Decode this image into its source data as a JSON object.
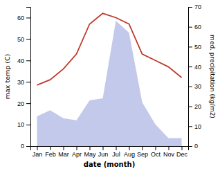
{
  "chart_data": {
    "type": "line",
    "categories": [
      "Jan",
      "Feb",
      "Mar",
      "Apr",
      "May",
      "Jun",
      "Jul",
      "Aug",
      "Sep",
      "Oct",
      "Nov",
      "Dec"
    ],
    "series": [
      {
        "type": "area",
        "axis": "y2",
        "color": "#b8c0e8",
        "values": [
          15,
          18,
          14,
          13,
          23,
          24,
          63,
          57,
          22,
          11,
          4,
          4
        ]
      },
      {
        "type": "line",
        "color": "#c0392b",
        "values": [
          28.5,
          31,
          36,
          43,
          57,
          62,
          60,
          57,
          43,
          40,
          37,
          32
        ]
      }
    ],
    "xlabel": "date (month)",
    "ylabel": "max temp (C)",
    "y2label": "med. precipitation (kg/m2)",
    "ylim": [
      0,
      65
    ],
    "yticks": [
      0,
      10,
      20,
      30,
      40,
      50,
      60
    ],
    "y2lim": [
      0,
      70
    ],
    "y2ticks": [
      0,
      10,
      20,
      30,
      40,
      50,
      60,
      70
    ],
    "grid": false
  }
}
